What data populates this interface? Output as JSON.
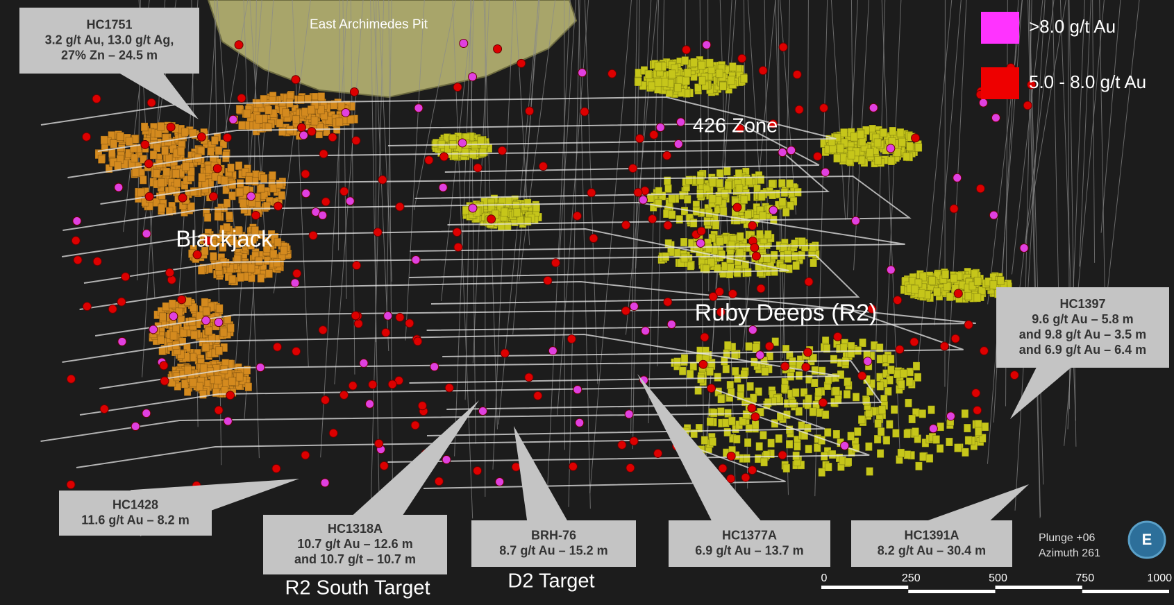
{
  "zones": {
    "pit": "East Archimedes Pit",
    "zone426": "426 Zone",
    "blackjack": "Blackjack",
    "ruby": "Ruby Deeps (R2)",
    "r2south": "R2 South Target",
    "d2": "D2 Target"
  },
  "legend": [
    {
      "label": ">8.0 g/t Au",
      "color": "#ff33ff"
    },
    {
      "label": "5.0 - 8.0 g/t Au",
      "color": "#ee0000"
    }
  ],
  "callouts": [
    {
      "id": "HC1751",
      "lines": [
        "3.2 g/t Au, 13.0 g/t Ag,",
        "27% Zn – 24.5 m"
      ]
    },
    {
      "id": "HC1428",
      "lines": [
        "11.6 g/t Au – 8.2 m"
      ]
    },
    {
      "id": "HC1318A",
      "lines": [
        "10.7 g/t Au – 12.6 m",
        "and 10.7 g/t – 10.7 m"
      ]
    },
    {
      "id": "BRH-76",
      "lines": [
        "8.7 g/t Au – 15.2 m"
      ]
    },
    {
      "id": "HC1377A",
      "lines": [
        "6.9 g/t Au – 13.7 m"
      ]
    },
    {
      "id": "HC1391A",
      "lines": [
        "8.2 g/t Au – 30.4 m"
      ]
    },
    {
      "id": "HC1397",
      "lines": [
        "9.6 g/t Au – 5.8 m",
        "and 9.8 g/t Au – 3.5 m",
        "and 6.9 g/t Au – 6.4 m"
      ]
    }
  ],
  "view": {
    "plunge": "Plunge +06",
    "azimuth": "Azimuth 261",
    "compass": "E"
  },
  "scale_bar": [
    "0",
    "250",
    "500",
    "750",
    "1000"
  ]
}
